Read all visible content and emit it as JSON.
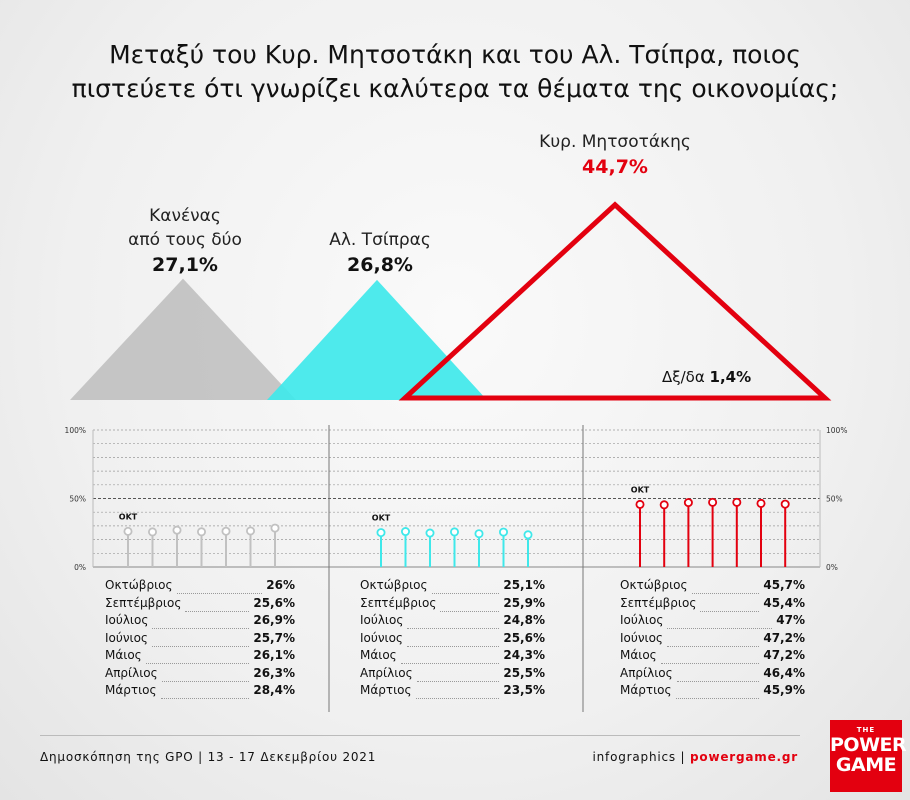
{
  "title_lines": [
    "Μεταξύ του Κυρ. Μητσοτάκη και του Αλ. Τσίπρα, ποιος",
    "πιστεύετε ότι γνωρίζει καλύτερα τα θέματα της οικονομίας;"
  ],
  "colors": {
    "gray": "#c1c1c1",
    "cyan": "#3fe8ea",
    "red": "#e3000f"
  },
  "chart_data": [
    {
      "type": "area",
      "title": "Μεταξύ του Κυρ. Μητσοτάκη και του Αλ. Τσίπρα, ποιος πιστεύετε ότι γνωρίζει καλύτερα τα θέματα της οικονομίας;",
      "categories": [
        "Κανένας από τους δύο",
        "Αλ. Τσίπρας",
        "Κυρ. Μητσοτάκης",
        "Δξ/δα"
      ],
      "values": [
        27.1,
        26.8,
        44.7,
        1.4
      ],
      "labels": {
        "none_line1": "Κανένας",
        "none_line2": "από τους δύο",
        "none_value": "27,1%",
        "tsipras": "Αλ. Τσίπρας",
        "tsipras_value": "26,8%",
        "mitsotakis": "Κυρ. Μητσοτάκης",
        "mitsotakis_value": "44,7%",
        "dk": "Δξ/δα",
        "dk_value": "1,4%"
      }
    },
    {
      "type": "line",
      "y_ticks": [
        "100%",
        "50%",
        "0%"
      ],
      "ylim": [
        0,
        100
      ],
      "point_label": "ΟΚΤ",
      "months": [
        "Οκτώβριος",
        "Σεπτέμβριος",
        "Ιούλιος",
        "Ιούνιος",
        "Μάιος",
        "Απρίλιος",
        "Μάρτιος"
      ],
      "series": [
        {
          "name": "Κανένας από τους δύο",
          "color": "#c1c1c1",
          "values": [
            26,
            25.6,
            26.9,
            25.7,
            26.1,
            26.3,
            28.4
          ],
          "labels": [
            "26%",
            "25,6%",
            "26,9%",
            "25,7%",
            "26,1%",
            "26,3%",
            "28,4%"
          ]
        },
        {
          "name": "Αλ. Τσίπρας",
          "color": "#3fe8ea",
          "values": [
            25.1,
            25.9,
            24.8,
            25.6,
            24.3,
            25.5,
            23.5
          ],
          "labels": [
            "25,1%",
            "25,9%",
            "24,8%",
            "25,6%",
            "24,3%",
            "25,5%",
            "23,5%"
          ]
        },
        {
          "name": "Κυρ. Μητσοτάκης",
          "color": "#e3000f",
          "values": [
            45.7,
            45.4,
            47,
            47.2,
            47.2,
            46.4,
            45.9
          ],
          "labels": [
            "45,7%",
            "45,4%",
            "47%",
            "47,2%",
            "47,2%",
            "46,4%",
            "45,9%"
          ]
        }
      ]
    }
  ],
  "footer": {
    "source": "Δημοσκόπηση της GPO | 13 - 17 Δεκεμβρίου 2021",
    "credit": "infographics | ",
    "site": "powergame.gr"
  },
  "logo": {
    "top": "THE",
    "line1": "POWER",
    "line2": "GAME"
  }
}
